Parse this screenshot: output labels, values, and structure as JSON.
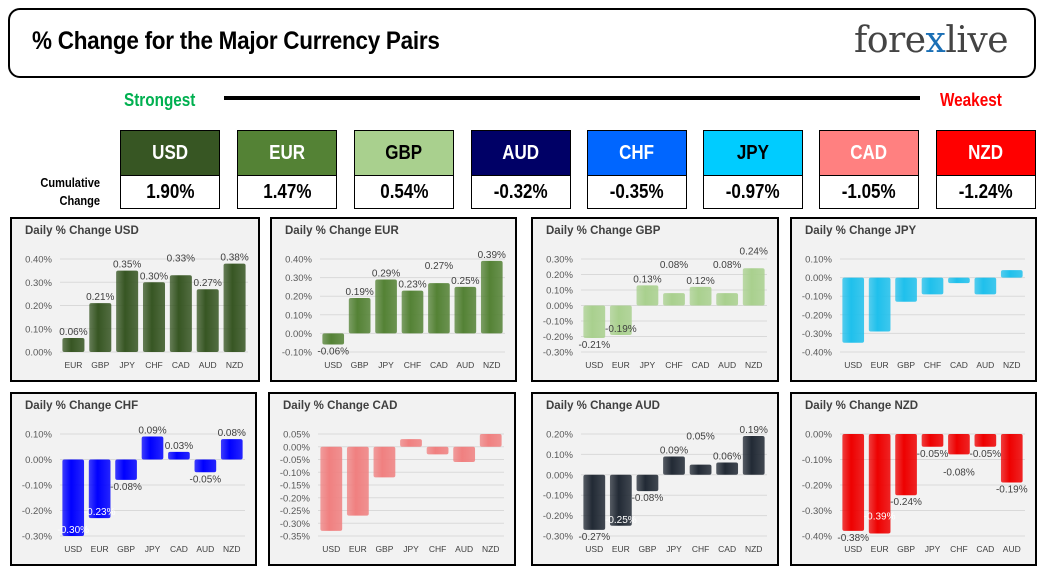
{
  "header": {
    "title": "% Change for the Major Currency Pairs",
    "logo": "forexlive"
  },
  "scale": {
    "strongest": "Strongest",
    "weakest": "Weakest",
    "row_label": "Cumulative Change"
  },
  "colors": {
    "strongest": "#00b050",
    "weakest": "#ff0000"
  },
  "currencies": [
    {
      "code": "USD",
      "cumulative": "1.90%",
      "bg": "#375623",
      "fg": "#ffffff"
    },
    {
      "code": "EUR",
      "cumulative": "1.47%",
      "bg": "#548235",
      "fg": "#ffffff"
    },
    {
      "code": "GBP",
      "cumulative": "0.54%",
      "bg": "#a9d08e",
      "fg": "#000000"
    },
    {
      "code": "AUD",
      "cumulative": "-0.32%",
      "bg": "#000066",
      "fg": "#ffffff"
    },
    {
      "code": "CHF",
      "cumulative": "-0.35%",
      "bg": "#0066ff",
      "fg": "#ffffff"
    },
    {
      "code": "JPY",
      "cumulative": "-0.97%",
      "bg": "#00ccff",
      "fg": "#000000"
    },
    {
      "code": "CAD",
      "cumulative": "-1.05%",
      "bg": "#ff8080",
      "fg": "#ffffff"
    },
    {
      "code": "NZD",
      "cumulative": "-1.24%",
      "bg": "#ff0000",
      "fg": "#ffffff"
    }
  ],
  "chart_data": [
    {
      "type": "bar",
      "title": "Daily % Change USD",
      "color": "#375623",
      "categories": [
        "EUR",
        "GBP",
        "JPY",
        "CHF",
        "CAD",
        "AUD",
        "NZD"
      ],
      "values": [
        0.06,
        0.21,
        0.35,
        0.3,
        0.33,
        0.27,
        0.38
      ],
      "show_labels": true,
      "ylim": [
        0,
        0.4
      ],
      "ystep": 0.1,
      "ytick_decimals": 2,
      "grid": true
    },
    {
      "type": "bar",
      "title": "Daily % Change EUR",
      "color": "#548235",
      "categories": [
        "USD",
        "GBP",
        "JPY",
        "CHF",
        "CAD",
        "AUD",
        "NZD"
      ],
      "values": [
        -0.06,
        0.19,
        0.29,
        0.23,
        0.27,
        0.25,
        0.39
      ],
      "show_labels": true,
      "ylim": [
        -0.1,
        0.4
      ],
      "ystep": 0.1,
      "ytick_decimals": 2,
      "grid": true
    },
    {
      "type": "bar",
      "title": "Daily % Change GBP",
      "color": "#a9d08e",
      "categories": [
        "USD",
        "EUR",
        "JPY",
        "CHF",
        "CAD",
        "AUD",
        "NZD"
      ],
      "values": [
        -0.21,
        -0.19,
        0.13,
        0.08,
        0.12,
        0.08,
        0.24
      ],
      "show_labels": true,
      "ylim": [
        -0.3,
        0.3
      ],
      "ystep": 0.1,
      "ytick_decimals": 2,
      "grid": true
    },
    {
      "type": "bar",
      "title": "Daily % Change JPY",
      "color": "#1fc0ec",
      "categories": [
        "USD",
        "EUR",
        "GBP",
        "CHF",
        "CAD",
        "AUD",
        "NZD"
      ],
      "values": [
        -0.35,
        -0.29,
        -0.13,
        -0.09,
        -0.03,
        -0.09,
        0.04
      ],
      "show_labels": false,
      "ylim": [
        -0.4,
        0.1
      ],
      "ystep": 0.1,
      "ytick_decimals": 2,
      "grid": true
    },
    {
      "type": "bar",
      "title": "Daily % Change CHF",
      "color": "#0000ff",
      "categories": [
        "USD",
        "EUR",
        "GBP",
        "JPY",
        "CAD",
        "AUD",
        "NZD"
      ],
      "values": [
        -0.3,
        -0.23,
        -0.08,
        0.09,
        0.03,
        -0.05,
        0.08
      ],
      "show_labels": true,
      "ylim": [
        -0.3,
        0.1
      ],
      "ystep": 0.1,
      "ytick_decimals": 2,
      "grid": true
    },
    {
      "type": "bar",
      "title": "Daily % Change CAD",
      "color": "#f08080",
      "categories": [
        "USD",
        "EUR",
        "GBP",
        "JPY",
        "CHF",
        "AUD",
        "NZD"
      ],
      "values": [
        -0.33,
        -0.27,
        -0.12,
        0.03,
        -0.03,
        -0.06,
        0.05
      ],
      "show_labels": false,
      "ylim": [
        -0.35,
        0.05
      ],
      "ystep": 0.05,
      "ytick_decimals": 2,
      "grid": true
    },
    {
      "type": "bar",
      "title": "Daily % Change AUD",
      "color": "#222a35",
      "categories": [
        "USD",
        "EUR",
        "GBP",
        "JPY",
        "CHF",
        "CAD",
        "NZD"
      ],
      "values": [
        -0.27,
        -0.25,
        -0.08,
        0.09,
        0.05,
        0.06,
        0.19
      ],
      "show_labels": true,
      "ylim": [
        -0.3,
        0.2
      ],
      "ystep": 0.1,
      "ytick_decimals": 2,
      "grid": true
    },
    {
      "type": "bar",
      "title": "Daily % Change NZD",
      "color": "#ee0000",
      "categories": [
        "USD",
        "EUR",
        "GBP",
        "JPY",
        "CHF",
        "CAD",
        "AUD"
      ],
      "values": [
        -0.38,
        -0.39,
        -0.24,
        -0.05,
        -0.08,
        -0.05,
        -0.19
      ],
      "show_labels": true,
      "ylim": [
        -0.4,
        0
      ],
      "ystep": 0.1,
      "ytick_decimals": 2,
      "grid": true
    }
  ]
}
